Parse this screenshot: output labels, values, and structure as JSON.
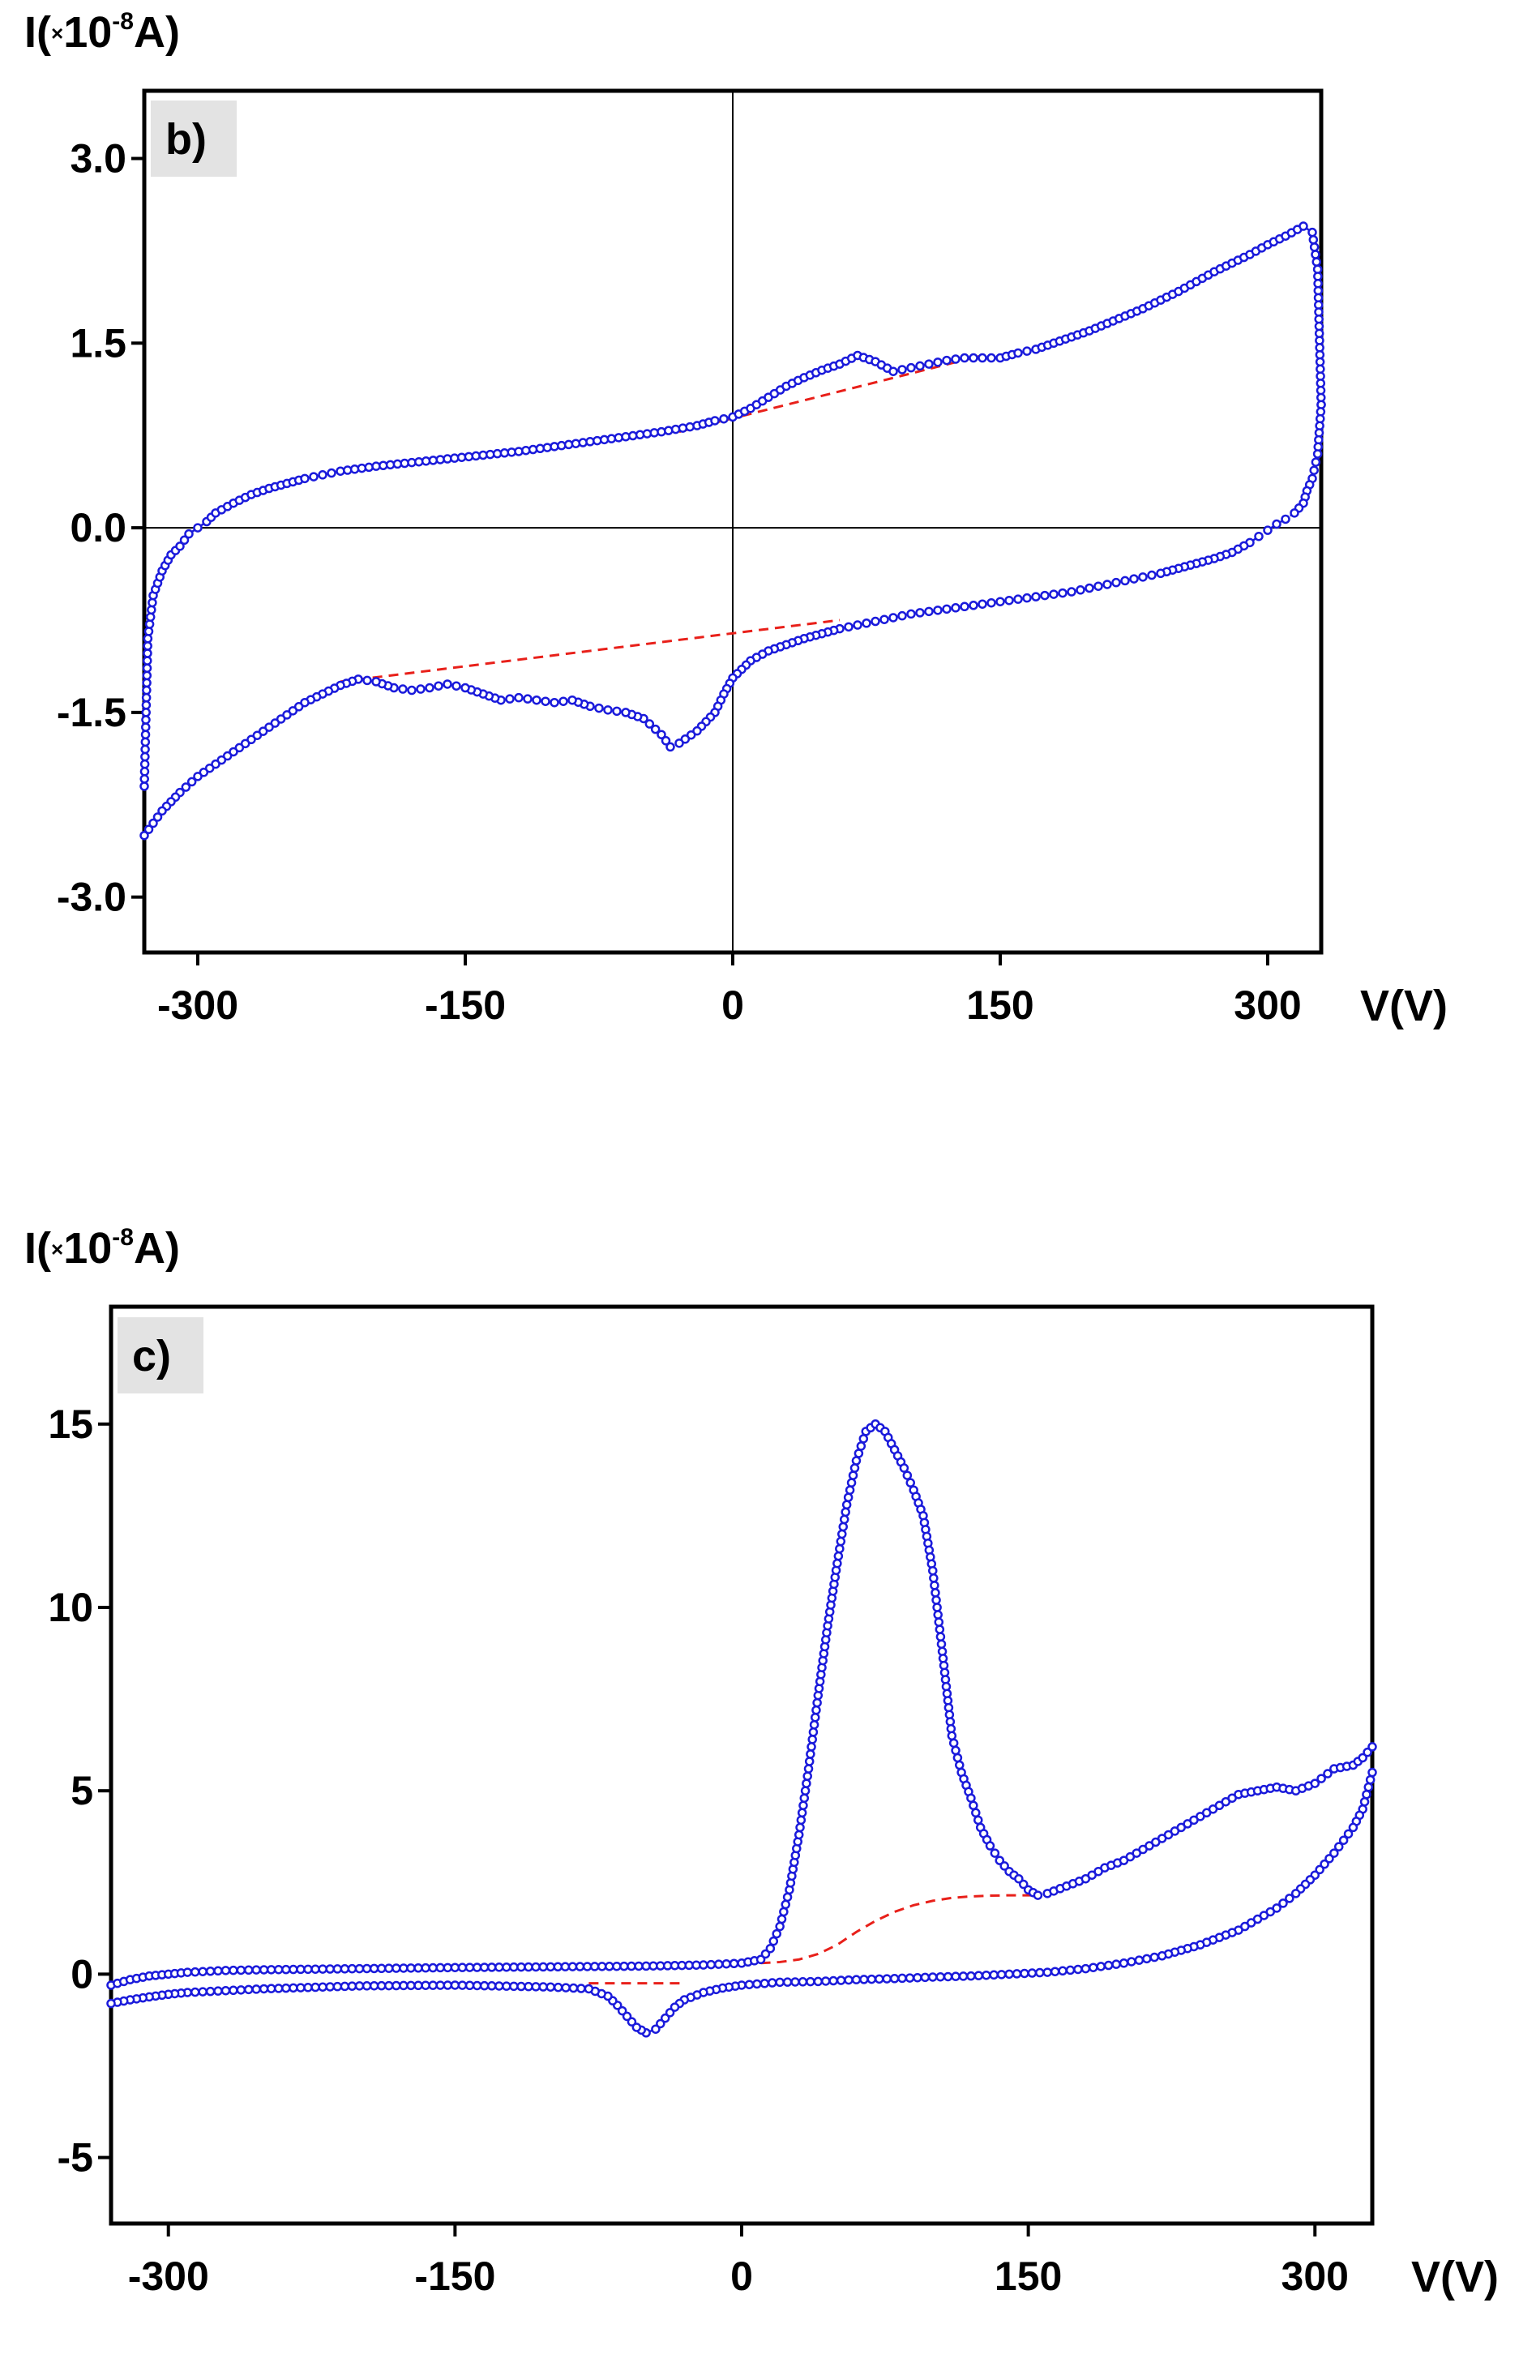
{
  "colors": {
    "data": "#1a1adb",
    "baseline": "#e8201a",
    "label_bg": "#e3e3e3",
    "axis": "#000000"
  },
  "chart_data": [
    {
      "type": "line",
      "panel_label": "b)",
      "ylabel_prefix": "I(",
      "ylabel_x": "×",
      "ylabel_base": "10",
      "ylabel_exp": "-8",
      "ylabel_suffix": "A)",
      "xlabel": "V(V)",
      "xlim": [
        -330,
        330
      ],
      "ylim": [
        -3.45,
        3.55
      ],
      "xticks": [
        -300,
        -150,
        0,
        150,
        300
      ],
      "xtick_labels": [
        "-300",
        "-150",
        "0",
        "150",
        "300"
      ],
      "yticks": [
        3.0,
        1.5,
        0.0,
        -1.5,
        -3.0
      ],
      "ytick_labels": [
        "3.0",
        "1.5",
        "0.0",
        "-1.5",
        "-3.0"
      ],
      "zero_lines": true,
      "series": [
        {
          "style": "circles-dashed",
          "color": "#1a1adb",
          "x": [
            -330,
            -328,
            -325,
            -320,
            -315,
            -310,
            -305,
            -300,
            -295,
            -290,
            -280,
            -270,
            -260,
            -250,
            -240,
            -230,
            -220,
            -200,
            -180,
            -160,
            -140,
            -120,
            -100,
            -80,
            -60,
            -40,
            -20,
            -10,
            0,
            10,
            20,
            30,
            40,
            50,
            60,
            70,
            80,
            90,
            100,
            110,
            120,
            130,
            140,
            150,
            160,
            170,
            180,
            190,
            200,
            210,
            220,
            230,
            240,
            250,
            260,
            270,
            280,
            290,
            300,
            310,
            320,
            325,
            328,
            330
          ],
          "y": [
            -2.1,
            -0.9,
            -0.55,
            -0.35,
            -0.22,
            -0.15,
            -0.05,
            0.0,
            0.05,
            0.12,
            0.2,
            0.27,
            0.32,
            0.36,
            0.4,
            0.43,
            0.46,
            0.5,
            0.53,
            0.56,
            0.59,
            0.62,
            0.66,
            0.7,
            0.74,
            0.78,
            0.83,
            0.87,
            0.9,
            0.97,
            1.06,
            1.15,
            1.22,
            1.28,
            1.33,
            1.4,
            1.35,
            1.27,
            1.3,
            1.33,
            1.36,
            1.38,
            1.38,
            1.38,
            1.42,
            1.45,
            1.5,
            1.55,
            1.6,
            1.66,
            1.72,
            1.78,
            1.85,
            1.92,
            2.0,
            2.08,
            2.15,
            2.22,
            2.3,
            2.37,
            2.45,
            2.4,
            2.1,
            1.0
          ]
        },
        {
          "style": "circles-dashed",
          "color": "#1a1adb",
          "x": [
            330,
            328,
            325,
            322,
            320,
            315,
            310,
            305,
            300,
            295,
            290,
            280,
            270,
            260,
            250,
            240,
            230,
            220,
            210,
            200,
            190,
            180,
            170,
            160,
            150,
            140,
            130,
            120,
            110,
            100,
            90,
            80,
            70,
            60,
            50,
            40,
            30,
            20,
            10,
            5,
            0,
            -5,
            -10,
            -20,
            -30,
            -35,
            -40,
            -50,
            -60,
            -70,
            -80,
            -90,
            -100,
            -110,
            -120,
            -130,
            -140,
            -150,
            -160,
            -170,
            -180,
            -190,
            -200,
            -210,
            -220,
            -230,
            -240,
            -250,
            -260,
            -270,
            -280,
            -290,
            -300,
            -310,
            -320,
            -325,
            -330
          ],
          "y": [
            1.0,
            0.6,
            0.4,
            0.3,
            0.2,
            0.12,
            0.07,
            0.03,
            -0.02,
            -0.07,
            -0.12,
            -0.2,
            -0.25,
            -0.29,
            -0.33,
            -0.37,
            -0.4,
            -0.43,
            -0.46,
            -0.49,
            -0.52,
            -0.54,
            -0.56,
            -0.58,
            -0.6,
            -0.62,
            -0.64,
            -0.66,
            -0.68,
            -0.7,
            -0.73,
            -0.76,
            -0.79,
            -0.82,
            -0.86,
            -0.9,
            -0.95,
            -1.0,
            -1.08,
            -1.15,
            -1.22,
            -1.35,
            -1.5,
            -1.65,
            -1.75,
            -1.78,
            -1.68,
            -1.55,
            -1.5,
            -1.48,
            -1.45,
            -1.4,
            -1.42,
            -1.4,
            -1.38,
            -1.4,
            -1.35,
            -1.3,
            -1.27,
            -1.3,
            -1.32,
            -1.3,
            -1.25,
            -1.23,
            -1.28,
            -1.35,
            -1.42,
            -1.52,
            -1.62,
            -1.72,
            -1.82,
            -1.92,
            -2.02,
            -2.15,
            -2.3,
            -2.4,
            -2.5
          ]
        }
      ],
      "baselines": [
        {
          "color": "#e8201a",
          "x": [
            -30,
            140
          ],
          "y": [
            0.78,
            1.4
          ]
        },
        {
          "color": "#e8201a",
          "x": [
            -220,
            60
          ],
          "y": [
            -1.25,
            -0.75
          ]
        }
      ]
    },
    {
      "type": "line",
      "panel_label": "c)",
      "ylabel_prefix": "I(",
      "ylabel_x": "×",
      "ylabel_base": "10",
      "ylabel_exp": "-8",
      "ylabel_suffix": "A)",
      "xlabel": "V(V)",
      "xlim": [
        -330,
        330
      ],
      "ylim": [
        -6.8,
        18.2
      ],
      "xticks": [
        -300,
        -150,
        0,
        150,
        300
      ],
      "xtick_labels": [
        "-300",
        "-150",
        "0",
        "150",
        "300"
      ],
      "yticks": [
        15,
        10,
        5,
        0,
        -5
      ],
      "ytick_labels": [
        "15",
        "10",
        "5",
        "0",
        "-5"
      ],
      "zero_lines": false,
      "series": [
        {
          "style": "circles-dashed",
          "color": "#1a1adb",
          "x": [
            -330,
            -320,
            -310,
            -300,
            -290,
            -270,
            -250,
            -200,
            -150,
            -100,
            -50,
            -20,
            0,
            10,
            15,
            20,
            25,
            30,
            35,
            40,
            45,
            50,
            55,
            60,
            65,
            70,
            75,
            80,
            85,
            90,
            95,
            100,
            105,
            110,
            115,
            120,
            125,
            130,
            135,
            140,
            145,
            150,
            155,
            160,
            170,
            180,
            190,
            200,
            210,
            220,
            230,
            240,
            250,
            260,
            270,
            280,
            290,
            300,
            310,
            320,
            325,
            330
          ],
          "y": [
            -0.3,
            -0.15,
            -0.05,
            0.0,
            0.05,
            0.1,
            0.12,
            0.15,
            0.18,
            0.2,
            0.22,
            0.25,
            0.3,
            0.4,
            0.7,
            1.3,
            2.3,
            3.8,
            5.6,
            7.6,
            9.5,
            11.2,
            12.8,
            14.0,
            14.8,
            15.0,
            14.8,
            14.3,
            13.8,
            13.2,
            12.5,
            11.0,
            8.8,
            6.5,
            5.5,
            4.8,
            4.0,
            3.5,
            3.1,
            2.8,
            2.6,
            2.3,
            2.15,
            2.2,
            2.4,
            2.6,
            2.9,
            3.1,
            3.4,
            3.7,
            4.0,
            4.3,
            4.6,
            4.9,
            5.0,
            5.1,
            5.0,
            5.2,
            5.6,
            5.7,
            5.9,
            6.2
          ]
        },
        {
          "style": "circles-dashed",
          "color": "#1a1adb",
          "x": [
            330,
            325,
            320,
            310,
            300,
            290,
            280,
            270,
            260,
            250,
            240,
            230,
            220,
            200,
            180,
            160,
            140,
            120,
            100,
            80,
            60,
            40,
            20,
            0,
            -10,
            -20,
            -30,
            -35,
            -40,
            -45,
            -50,
            -55,
            -60,
            -65,
            -70,
            -80,
            -100,
            -150,
            -200,
            -250,
            -290,
            -300,
            -310,
            -320,
            -330
          ],
          "y": [
            5.5,
            4.5,
            4.0,
            3.3,
            2.7,
            2.2,
            1.8,
            1.5,
            1.2,
            1.0,
            0.8,
            0.65,
            0.5,
            0.3,
            0.15,
            0.05,
            0.0,
            -0.05,
            -0.08,
            -0.12,
            -0.15,
            -0.2,
            -0.22,
            -0.3,
            -0.38,
            -0.5,
            -0.7,
            -0.9,
            -1.2,
            -1.5,
            -1.6,
            -1.45,
            -1.15,
            -0.85,
            -0.6,
            -0.4,
            -0.35,
            -0.3,
            -0.32,
            -0.4,
            -0.5,
            -0.55,
            -0.62,
            -0.7,
            -0.8
          ]
        }
      ],
      "baselines": [
        {
          "color": "#e8201a",
          "x": [
            10,
            20,
            30,
            40,
            50,
            60,
            70,
            80,
            90,
            100,
            110,
            120,
            130,
            140,
            150,
            155
          ],
          "y": [
            0.3,
            0.33,
            0.4,
            0.55,
            0.8,
            1.15,
            1.45,
            1.7,
            1.88,
            2.0,
            2.08,
            2.12,
            2.14,
            2.15,
            2.15,
            2.15
          ]
        },
        {
          "color": "#e8201a",
          "x": [
            -80,
            -30
          ],
          "y": [
            -0.25,
            -0.25
          ]
        }
      ]
    }
  ]
}
